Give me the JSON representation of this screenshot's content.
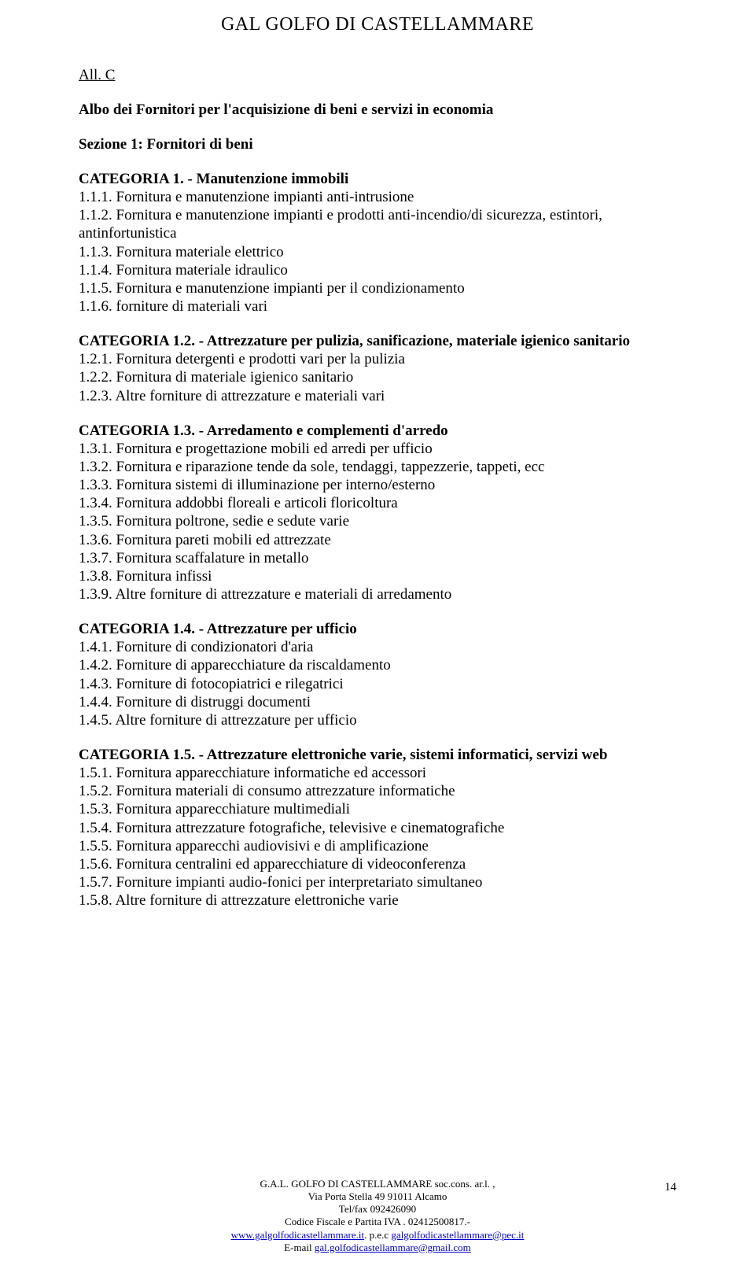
{
  "header": "GAL GOLFO DI CASTELLAMMARE",
  "allC": "All. C",
  "alboTitle": "Albo dei Fornitori per l'acquisizione di beni e servizi in economia",
  "sezione": "Sezione 1: Fornitori di beni",
  "categories": [
    {
      "title": "CATEGORIA 1.  - Manutenzione immobili",
      "items": [
        "1.1.1. Fornitura e manutenzione impianti anti-intrusione",
        "1.1.2. Fornitura e manutenzione impianti e prodotti anti-incendio/di sicurezza, estintori, antinfortunistica",
        "1.1.3. Fornitura materiale elettrico",
        "1.1.4. Fornitura materiale idraulico",
        "1.1.5. Fornitura e manutenzione impianti per il condizionamento",
        "1.1.6. forniture di materiali vari"
      ]
    },
    {
      "title": "CATEGORIA 1.2. - Attrezzature per pulizia, sanificazione, materiale igienico sanitario",
      "items": [
        "1.2.1. Fornitura detergenti e prodotti vari per la pulizia",
        "1.2.2. Fornitura di materiale igienico sanitario",
        "1.2.3. Altre forniture di attrezzature e materiali vari"
      ]
    },
    {
      "title": "CATEGORIA 1.3. - Arredamento e complementi d'arredo",
      "items": [
        "1.3.1. Fornitura e progettazione mobili ed arredi per ufficio",
        "1.3.2. Fornitura e riparazione tende da sole, tendaggi, tappezzerie, tappeti, ecc",
        "1.3.3. Fornitura sistemi di illuminazione per interno/esterno",
        "1.3.4. Fornitura addobbi floreali e articoli floricoltura",
        "1.3.5. Fornitura poltrone, sedie e sedute varie",
        "1.3.6. Fornitura pareti mobili ed attrezzate",
        "1.3.7. Fornitura scaffalature in metallo",
        "1.3.8. Fornitura infissi",
        "1.3.9. Altre forniture di attrezzature e materiali di arredamento"
      ]
    },
    {
      "title": "CATEGORIA 1.4. - Attrezzature per ufficio",
      "items": [
        "1.4.1. Forniture di condizionatori d'aria",
        "1.4.2. Forniture di apparecchiature da riscaldamento",
        "1.4.3. Forniture di fotocopiatrici e rilegatrici",
        "1.4.4. Forniture di distruggi documenti",
        "1.4.5. Altre forniture di attrezzature per ufficio"
      ]
    },
    {
      "title": "CATEGORIA 1.5. - Attrezzature elettroniche varie, sistemi informatici, servizi web",
      "items": [
        "1.5.1. Fornitura apparecchiature informatiche ed accessori",
        "1.5.2. Fornitura materiali di consumo attrezzature informatiche",
        "1.5.3. Fornitura apparecchiature multimediali",
        "1.5.4. Fornitura attrezzature fotografiche, televisive e cinematografiche",
        "1.5.5. Fornitura apparecchi audiovisivi e di amplificazione",
        "1.5.6. Fornitura centralini ed apparecchiature di videoconferenza",
        "1.5.7. Forniture impianti audio-fonici per interpretariato simultaneo",
        "1.5.8. Altre forniture di attrezzature elettroniche varie"
      ]
    }
  ],
  "pageNum": "14",
  "footer": {
    "line1": "G.A.L. GOLFO DI CASTELLAMMARE soc.cons. ar.l. ,",
    "line2": "Via Porta Stella 49 91011 Alcamo",
    "line3": "Tel/fax 092426090",
    "line4a": "Codice Fiscale e Partita IVA .",
    "line4b": " 02412500817.-",
    "link1": "www.galgolfodicastellammare.it",
    "mid1": ". p.e.c ",
    "link2": "galgolfodicastellammare@pec.it",
    "line6a": "E-mail ",
    "link3": "gal.golfodicastellammare@gmail.com"
  }
}
